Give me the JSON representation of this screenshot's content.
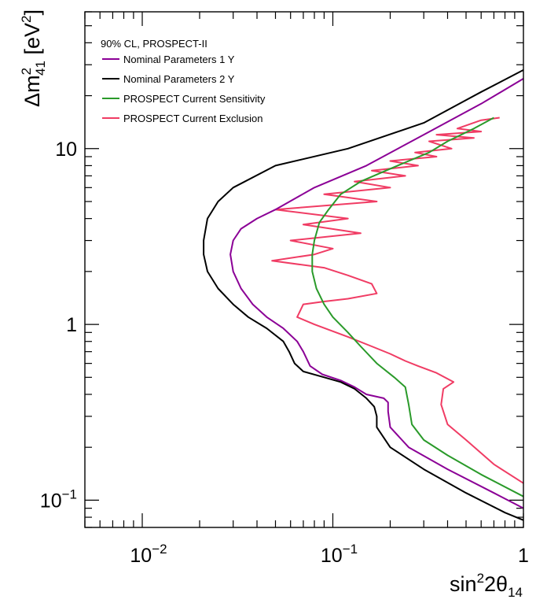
{
  "chart_data": {
    "type": "line",
    "title": "90% CL, PROSPECT-II",
    "xlabel": "sin²2θ₁₄",
    "ylabel": "Δm²₄₁ [eV²]",
    "x_scale": "log",
    "y_scale": "log",
    "xlim": [
      0.005,
      1
    ],
    "ylim": [
      0.07,
      60
    ],
    "x_tick_labels": [
      {
        "value": 0.01,
        "base": "10",
        "exp": "−2"
      },
      {
        "value": 0.1,
        "base": "10",
        "exp": "−1"
      },
      {
        "value": 1,
        "base": "1",
        "exp": ""
      }
    ],
    "y_tick_labels": [
      {
        "value": 0.1,
        "base": "10",
        "exp": "−1"
      },
      {
        "value": 1,
        "base": "1",
        "exp": ""
      },
      {
        "value": 10,
        "base": "10",
        "exp": ""
      }
    ],
    "legend_position": "top-left",
    "series": [
      {
        "name": "Nominal Parameters 1 Y",
        "color": "#8b0096",
        "points": [
          [
            1.0,
            25
          ],
          [
            0.6,
            18
          ],
          [
            0.3,
            12
          ],
          [
            0.15,
            8
          ],
          [
            0.08,
            6
          ],
          [
            0.05,
            4.5
          ],
          [
            0.04,
            4
          ],
          [
            0.033,
            3.5
          ],
          [
            0.03,
            3
          ],
          [
            0.029,
            2.5
          ],
          [
            0.03,
            2
          ],
          [
            0.033,
            1.6
          ],
          [
            0.038,
            1.3
          ],
          [
            0.045,
            1.1
          ],
          [
            0.055,
            0.95
          ],
          [
            0.065,
            0.8
          ],
          [
            0.07,
            0.7
          ],
          [
            0.076,
            0.58
          ],
          [
            0.088,
            0.52
          ],
          [
            0.11,
            0.48
          ],
          [
            0.13,
            0.44
          ],
          [
            0.15,
            0.4
          ],
          [
            0.185,
            0.38
          ],
          [
            0.195,
            0.36
          ],
          [
            0.195,
            0.32
          ],
          [
            0.2,
            0.26
          ],
          [
            0.25,
            0.2
          ],
          [
            0.4,
            0.15
          ],
          [
            0.7,
            0.11
          ],
          [
            1.0,
            0.09
          ]
        ]
      },
      {
        "name": "Nominal Parameters 2 Y",
        "color": "#000000",
        "points": [
          [
            1.0,
            28
          ],
          [
            0.6,
            21
          ],
          [
            0.3,
            14
          ],
          [
            0.12,
            10
          ],
          [
            0.05,
            8
          ],
          [
            0.03,
            6
          ],
          [
            0.025,
            5
          ],
          [
            0.022,
            4
          ],
          [
            0.021,
            3
          ],
          [
            0.021,
            2.5
          ],
          [
            0.022,
            2
          ],
          [
            0.025,
            1.6
          ],
          [
            0.03,
            1.3
          ],
          [
            0.036,
            1.1
          ],
          [
            0.045,
            0.95
          ],
          [
            0.055,
            0.8
          ],
          [
            0.059,
            0.7
          ],
          [
            0.063,
            0.6
          ],
          [
            0.07,
            0.54
          ],
          [
            0.09,
            0.5
          ],
          [
            0.11,
            0.47
          ],
          [
            0.13,
            0.43
          ],
          [
            0.15,
            0.38
          ],
          [
            0.165,
            0.34
          ],
          [
            0.17,
            0.3
          ],
          [
            0.17,
            0.26
          ],
          [
            0.2,
            0.2
          ],
          [
            0.3,
            0.15
          ],
          [
            0.5,
            0.11
          ],
          [
            0.8,
            0.085
          ],
          [
            1.0,
            0.077
          ]
        ]
      },
      {
        "name": "PROSPECT Current Sensitivity",
        "color": "#2a9a2a",
        "points": [
          [
            0.7,
            15
          ],
          [
            0.55,
            13
          ],
          [
            0.4,
            11
          ],
          [
            0.32,
            9.5
          ],
          [
            0.25,
            8.5
          ],
          [
            0.19,
            7.5
          ],
          [
            0.14,
            6.5
          ],
          [
            0.11,
            5.5
          ],
          [
            0.095,
            4.5
          ],
          [
            0.085,
            3.8
          ],
          [
            0.08,
            3
          ],
          [
            0.078,
            2.5
          ],
          [
            0.078,
            2
          ],
          [
            0.082,
            1.6
          ],
          [
            0.09,
            1.3
          ],
          [
            0.1,
            1.1
          ],
          [
            0.12,
            0.9
          ],
          [
            0.14,
            0.75
          ],
          [
            0.17,
            0.6
          ],
          [
            0.21,
            0.5
          ],
          [
            0.24,
            0.44
          ],
          [
            0.25,
            0.35
          ],
          [
            0.26,
            0.27
          ],
          [
            0.3,
            0.22
          ],
          [
            0.4,
            0.18
          ],
          [
            0.6,
            0.14
          ],
          [
            1.0,
            0.105
          ]
        ]
      },
      {
        "name": "PROSPECT Current Exclusion",
        "color": "#f03c64",
        "points": [
          [
            0.75,
            15
          ],
          [
            0.6,
            14.5
          ],
          [
            0.45,
            13
          ],
          [
            0.6,
            12.5
          ],
          [
            0.35,
            12
          ],
          [
            0.55,
            11.5
          ],
          [
            0.32,
            11
          ],
          [
            0.42,
            10
          ],
          [
            0.27,
            9.5
          ],
          [
            0.35,
            9
          ],
          [
            0.2,
            8.5
          ],
          [
            0.28,
            8
          ],
          [
            0.16,
            7.5
          ],
          [
            0.24,
            7
          ],
          [
            0.13,
            6.5
          ],
          [
            0.2,
            6
          ],
          [
            0.09,
            5.5
          ],
          [
            0.17,
            5
          ],
          [
            0.05,
            4.5
          ],
          [
            0.12,
            4
          ],
          [
            0.07,
            3.7
          ],
          [
            0.14,
            3.3
          ],
          [
            0.06,
            3
          ],
          [
            0.1,
            2.7
          ],
          [
            0.08,
            2.5
          ],
          [
            0.048,
            2.3
          ],
          [
            0.09,
            2.1
          ],
          [
            0.12,
            1.9
          ],
          [
            0.16,
            1.7
          ],
          [
            0.17,
            1.5
          ],
          [
            0.12,
            1.4
          ],
          [
            0.09,
            1.35
          ],
          [
            0.07,
            1.3
          ],
          [
            0.065,
            1.1
          ],
          [
            0.08,
            1.0
          ],
          [
            0.12,
            0.85
          ],
          [
            0.16,
            0.75
          ],
          [
            0.2,
            0.68
          ],
          [
            0.24,
            0.62
          ],
          [
            0.28,
            0.58
          ],
          [
            0.35,
            0.53
          ],
          [
            0.43,
            0.47
          ],
          [
            0.38,
            0.43
          ],
          [
            0.37,
            0.35
          ],
          [
            0.4,
            0.27
          ],
          [
            0.5,
            0.22
          ],
          [
            0.7,
            0.16
          ],
          [
            1.0,
            0.125
          ]
        ]
      }
    ]
  }
}
